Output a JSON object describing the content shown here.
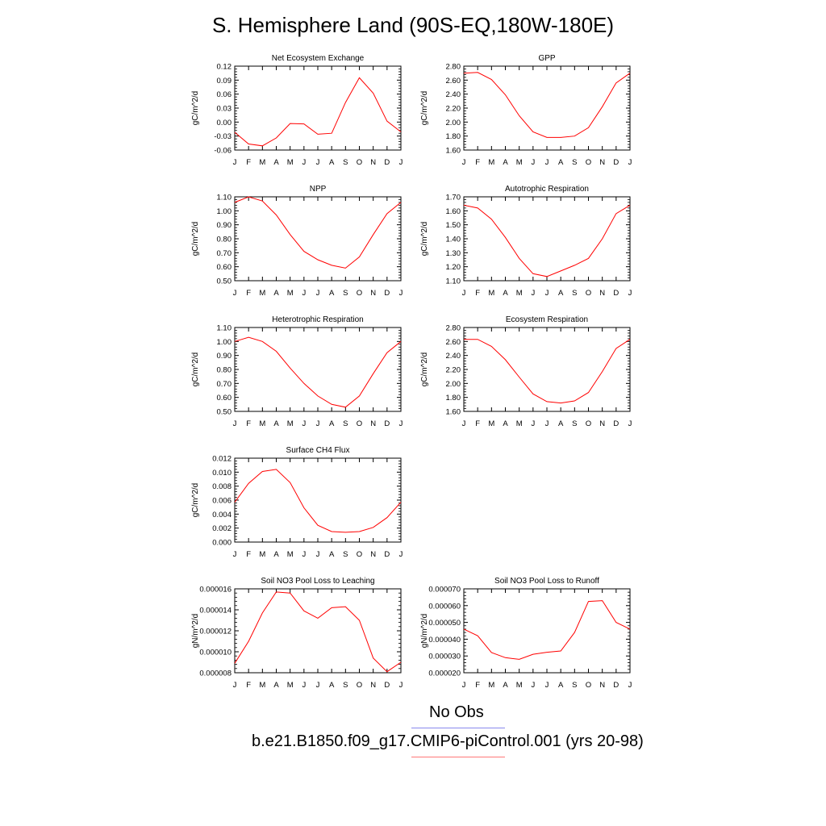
{
  "title": "S. Hemisphere Land (90S-EQ,180W-180E)",
  "months": [
    "J",
    "F",
    "M",
    "A",
    "M",
    "J",
    "J",
    "A",
    "S",
    "O",
    "N",
    "D",
    "J"
  ],
  "colors": {
    "model": "#ff0000",
    "obs": "#8888ee"
  },
  "legend": {
    "obs_label": "No Obs",
    "model_label": "b.e21.B1850.f09_g17.CMIP6-piControl.001 (yrs 20-98)"
  },
  "chart_data": [
    {
      "type": "line",
      "title": "Net Ecosystem Exchange",
      "ylabel": "gC/m^2/d",
      "ylim": [
        -0.06,
        0.12
      ],
      "ticks": [
        "-0.06",
        "-0.03",
        "0.00",
        "0.03",
        "0.06",
        "0.09",
        "0.12"
      ],
      "values": [
        -0.022,
        -0.047,
        -0.051,
        -0.034,
        -0.003,
        -0.004,
        -0.026,
        -0.024,
        0.042,
        0.095,
        0.062,
        0.002,
        -0.021
      ]
    },
    {
      "type": "line",
      "title": "GPP",
      "ylabel": "gC/m^2/d",
      "ylim": [
        1.6,
        2.8
      ],
      "ticks": [
        "1.60",
        "1.80",
        "2.00",
        "2.20",
        "2.40",
        "2.60",
        "2.80"
      ],
      "values": [
        2.7,
        2.71,
        2.61,
        2.39,
        2.09,
        1.86,
        1.78,
        1.78,
        1.8,
        1.92,
        2.22,
        2.56,
        2.7
      ]
    },
    {
      "type": "line",
      "title": "NPP",
      "ylabel": "gC/m^2/d",
      "ylim": [
        0.5,
        1.1
      ],
      "ticks": [
        "0.50",
        "0.60",
        "0.70",
        "0.80",
        "0.90",
        "1.00",
        "1.10"
      ],
      "values": [
        1.06,
        1.1,
        1.07,
        0.97,
        0.83,
        0.71,
        0.65,
        0.61,
        0.59,
        0.67,
        0.83,
        0.98,
        1.06
      ]
    },
    {
      "type": "line",
      "title": "Autotrophic Respiration",
      "ylabel": "gC/m^2/d",
      "ylim": [
        1.1,
        1.7
      ],
      "ticks": [
        "1.10",
        "1.20",
        "1.30",
        "1.40",
        "1.50",
        "1.60",
        "1.70"
      ],
      "values": [
        1.64,
        1.62,
        1.54,
        1.41,
        1.26,
        1.15,
        1.13,
        1.17,
        1.21,
        1.26,
        1.4,
        1.58,
        1.64
      ]
    },
    {
      "type": "line",
      "title": "Heterotrophic Respiration",
      "ylabel": "gC/m^2/d",
      "ylim": [
        0.5,
        1.1
      ],
      "ticks": [
        "0.50",
        "0.60",
        "0.70",
        "0.80",
        "0.90",
        "1.00",
        "1.10"
      ],
      "values": [
        1.0,
        1.03,
        1.0,
        0.93,
        0.81,
        0.7,
        0.61,
        0.55,
        0.53,
        0.61,
        0.77,
        0.92,
        1.0
      ]
    },
    {
      "type": "line",
      "title": "Ecosystem Respiration",
      "ylabel": "gC/m^2/d",
      "ylim": [
        1.6,
        2.8
      ],
      "ticks": [
        "1.60",
        "1.80",
        "2.00",
        "2.20",
        "2.40",
        "2.60",
        "2.80"
      ],
      "values": [
        2.63,
        2.63,
        2.53,
        2.34,
        2.09,
        1.85,
        1.74,
        1.72,
        1.75,
        1.87,
        2.17,
        2.5,
        2.63
      ]
    },
    {
      "type": "line",
      "title": "Surface CH4 Flux",
      "ylabel": "gC/m^2/d",
      "ylim": [
        0.0,
        0.012
      ],
      "ticks": [
        "0.000",
        "0.002",
        "0.004",
        "0.006",
        "0.008",
        "0.010",
        "0.012"
      ],
      "values": [
        0.0057,
        0.0084,
        0.0101,
        0.0104,
        0.0085,
        0.0049,
        0.0024,
        0.0015,
        0.0014,
        0.0015,
        0.0021,
        0.0035,
        0.0057
      ]
    },
    {
      "type": "line",
      "title": "Soil NO3 Pool Loss to Leaching",
      "ylabel": "gN/m^2/d",
      "ylim": [
        8e-06,
        1.6e-05
      ],
      "ticks": [
        "0.000008",
        "0.000010",
        "0.000012",
        "0.000014",
        "0.000016"
      ],
      "values": [
        8.9e-06,
        1.1e-05,
        1.37e-05,
        1.57e-05,
        1.56e-05,
        1.39e-05,
        1.32e-05,
        1.42e-05,
        1.43e-05,
        1.3e-05,
        9.4e-06,
        8.1e-06,
        9e-06
      ]
    },
    {
      "type": "line",
      "title": "Soil NO3 Pool Loss to Runoff",
      "ylabel": "gN/m^2/d",
      "ylim": [
        2e-05,
        7e-05
      ],
      "ticks": [
        "0.000020",
        "0.000030",
        "0.000040",
        "0.000050",
        "0.000060",
        "0.000070"
      ],
      "values": [
        4.6e-05,
        4.2e-05,
        3.2e-05,
        2.9e-05,
        2.8e-05,
        3.1e-05,
        3.22e-05,
        3.3e-05,
        4.4e-05,
        6.25e-05,
        6.3e-05,
        5e-05,
        4.6e-05
      ]
    }
  ]
}
